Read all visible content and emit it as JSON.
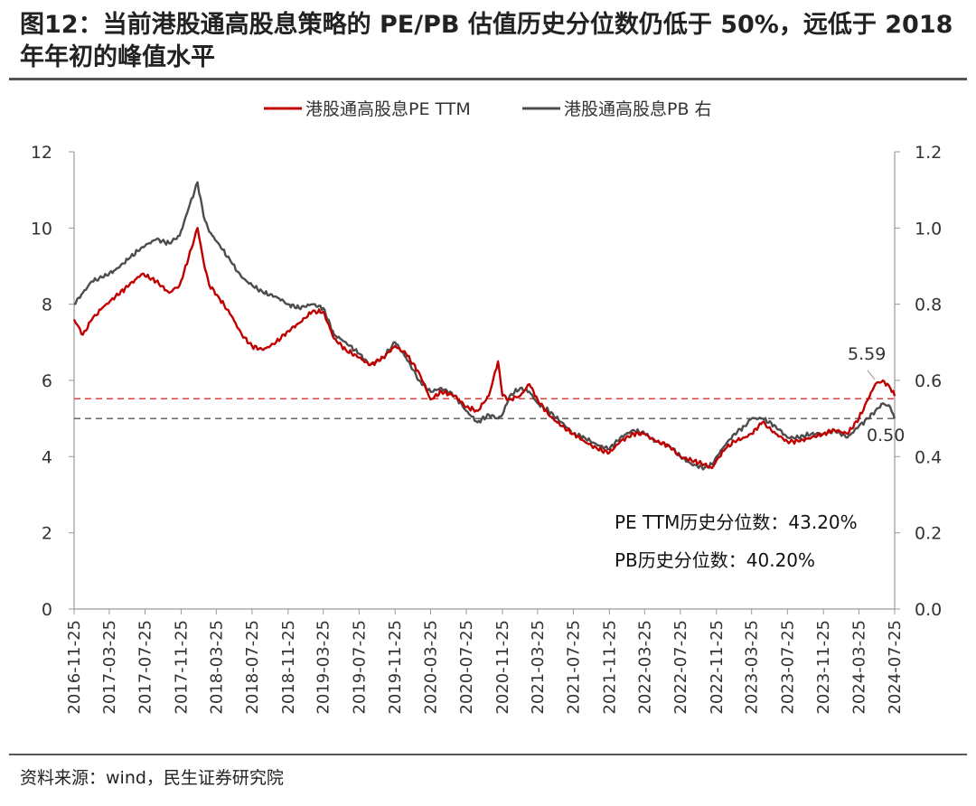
{
  "figure": {
    "title": "图12：当前港股通高股息策略的 PE/PB 估值历史分位数仍低于 50%，远低于 2018 年年初的峰值水平",
    "source": "资料来源：wind，民生证券研究院"
  },
  "chart_data": {
    "type": "line",
    "legend_position": "top-center",
    "grid": false,
    "y_left": {
      "lim": [
        0,
        12
      ],
      "ticks": [
        "0",
        "2",
        "4",
        "6",
        "8",
        "10",
        "12"
      ]
    },
    "y_right": {
      "lim": [
        0.0,
        1.2
      ],
      "ticks": [
        "0.0",
        "0.2",
        "0.4",
        "0.6",
        "0.8",
        "1.0",
        "1.2"
      ]
    },
    "x_ticks": [
      "2016-11-25",
      "2017-03-25",
      "2017-07-25",
      "2017-11-25",
      "2018-03-25",
      "2018-07-25",
      "2018-11-25",
      "2019-03-25",
      "2019-07-25",
      "2019-11-25",
      "2020-03-25",
      "2020-07-25",
      "2020-11-25",
      "2021-03-25",
      "2021-07-25",
      "2021-11-25",
      "2022-03-25",
      "2022-07-25",
      "2022-11-25",
      "2023-03-25",
      "2023-07-25",
      "2023-11-25",
      "2024-03-25",
      "2024-07-25"
    ],
    "series": [
      {
        "name": "港股通高股息PE TTM",
        "axis": "left",
        "color": "#c00000",
        "x": [
          "2016-11-25",
          "2016-12-25",
          "2017-01-25",
          "2017-03-01",
          "2017-04-15",
          "2017-06-01",
          "2017-07-15",
          "2017-09-01",
          "2017-10-15",
          "2017-11-20",
          "2017-12-20",
          "2018-01-20",
          "2018-02-10",
          "2018-03-01",
          "2018-04-01",
          "2018-05-15",
          "2018-06-20",
          "2018-07-25",
          "2018-09-01",
          "2018-10-15",
          "2018-11-25",
          "2019-01-01",
          "2019-02-15",
          "2019-03-25",
          "2019-05-01",
          "2019-06-10",
          "2019-07-25",
          "2019-09-01",
          "2019-10-15",
          "2019-11-25",
          "2020-01-01",
          "2020-02-15",
          "2020-03-25",
          "2020-05-01",
          "2020-06-15",
          "2020-07-25",
          "2020-09-01",
          "2020-10-10",
          "2020-11-10",
          "2020-11-25",
          "2020-12-20",
          "2021-01-25",
          "2021-02-25",
          "2021-03-25",
          "2021-05-01",
          "2021-06-15",
          "2021-07-25",
          "2021-09-01",
          "2021-10-15",
          "2021-11-25",
          "2022-01-01",
          "2022-02-15",
          "2022-03-25",
          "2022-05-01",
          "2022-06-15",
          "2022-07-25",
          "2022-09-01",
          "2022-10-15",
          "2022-11-10",
          "2022-11-25",
          "2022-12-25",
          "2023-01-25",
          "2023-03-01",
          "2023-03-25",
          "2023-05-01",
          "2023-06-15",
          "2023-07-25",
          "2023-09-01",
          "2023-10-15",
          "2023-11-25",
          "2024-01-01",
          "2024-02-15",
          "2024-03-25",
          "2024-04-25",
          "2024-05-20",
          "2024-06-15",
          "2024-07-10",
          "2024-07-25"
        ],
        "values": [
          7.6,
          7.2,
          7.6,
          7.9,
          8.2,
          8.5,
          8.8,
          8.6,
          8.3,
          8.5,
          9.2,
          10.0,
          9.1,
          8.5,
          8.2,
          7.7,
          7.2,
          6.9,
          6.8,
          7.0,
          7.3,
          7.5,
          7.8,
          7.8,
          7.1,
          6.8,
          6.6,
          6.4,
          6.6,
          6.9,
          6.7,
          6.2,
          5.5,
          5.7,
          5.6,
          5.3,
          5.2,
          5.6,
          6.5,
          5.6,
          5.5,
          5.6,
          5.9,
          5.5,
          5.1,
          4.8,
          4.6,
          4.4,
          4.2,
          4.1,
          4.4,
          4.6,
          4.6,
          4.4,
          4.3,
          4.0,
          3.9,
          3.8,
          3.7,
          3.9,
          4.2,
          4.4,
          4.5,
          4.6,
          4.9,
          4.6,
          4.4,
          4.4,
          4.5,
          4.6,
          4.7,
          4.6,
          5.0,
          5.5,
          5.9,
          6.0,
          5.8,
          5.59
        ]
      },
      {
        "name": "港股通高股息PB 右",
        "axis": "right",
        "color": "#4d4d4d",
        "x": [
          "2016-11-25",
          "2016-12-25",
          "2017-01-25",
          "2017-03-01",
          "2017-04-15",
          "2017-06-01",
          "2017-07-15",
          "2017-09-01",
          "2017-10-15",
          "2017-11-20",
          "2017-12-20",
          "2018-01-20",
          "2018-02-10",
          "2018-03-01",
          "2018-04-01",
          "2018-05-15",
          "2018-06-20",
          "2018-07-25",
          "2018-09-01",
          "2018-10-15",
          "2018-11-25",
          "2019-01-01",
          "2019-02-15",
          "2019-03-25",
          "2019-05-01",
          "2019-06-10",
          "2019-07-25",
          "2019-09-01",
          "2019-10-15",
          "2019-11-25",
          "2020-01-01",
          "2020-02-15",
          "2020-03-25",
          "2020-05-01",
          "2020-06-15",
          "2020-07-25",
          "2020-09-01",
          "2020-10-10",
          "2020-11-10",
          "2020-11-25",
          "2020-12-20",
          "2021-01-25",
          "2021-02-25",
          "2021-03-25",
          "2021-05-01",
          "2021-06-15",
          "2021-07-25",
          "2021-09-01",
          "2021-10-15",
          "2021-11-25",
          "2022-01-01",
          "2022-02-15",
          "2022-03-25",
          "2022-05-01",
          "2022-06-15",
          "2022-07-25",
          "2022-09-01",
          "2022-10-15",
          "2022-11-10",
          "2022-11-25",
          "2022-12-25",
          "2023-01-25",
          "2023-03-01",
          "2023-03-25",
          "2023-05-01",
          "2023-06-15",
          "2023-07-25",
          "2023-09-01",
          "2023-10-15",
          "2023-11-25",
          "2024-01-01",
          "2024-02-15",
          "2024-03-25",
          "2024-04-25",
          "2024-05-20",
          "2024-06-15",
          "2024-07-10",
          "2024-07-25"
        ],
        "values": [
          0.8,
          0.83,
          0.86,
          0.87,
          0.89,
          0.92,
          0.95,
          0.97,
          0.96,
          0.98,
          1.05,
          1.12,
          1.03,
          0.99,
          0.96,
          0.91,
          0.87,
          0.85,
          0.83,
          0.82,
          0.8,
          0.79,
          0.8,
          0.79,
          0.72,
          0.7,
          0.67,
          0.64,
          0.66,
          0.7,
          0.66,
          0.6,
          0.57,
          0.58,
          0.56,
          0.52,
          0.49,
          0.51,
          0.5,
          0.51,
          0.56,
          0.58,
          0.57,
          0.54,
          0.52,
          0.49,
          0.46,
          0.45,
          0.43,
          0.42,
          0.45,
          0.47,
          0.46,
          0.44,
          0.43,
          0.4,
          0.38,
          0.37,
          0.38,
          0.4,
          0.43,
          0.46,
          0.48,
          0.5,
          0.5,
          0.48,
          0.45,
          0.45,
          0.46,
          0.46,
          0.47,
          0.45,
          0.48,
          0.5,
          0.52,
          0.54,
          0.53,
          0.5
        ]
      }
    ],
    "reference_lines": [
      {
        "axis": "left",
        "value": 5.52,
        "color": "#d94040",
        "style": "dashed"
      },
      {
        "axis": "right",
        "value": 0.5,
        "color": "#555555",
        "style": "dashed"
      }
    ],
    "annotations": [
      {
        "id": "pe-last",
        "text": "5.59"
      },
      {
        "id": "pb-last",
        "text": "0.50"
      }
    ],
    "stats": [
      {
        "id": "pe-percentile",
        "text": "PE TTM历史分位数：43.20%"
      },
      {
        "id": "pb-percentile",
        "text": "PB历史分位数：40.20%"
      }
    ]
  }
}
